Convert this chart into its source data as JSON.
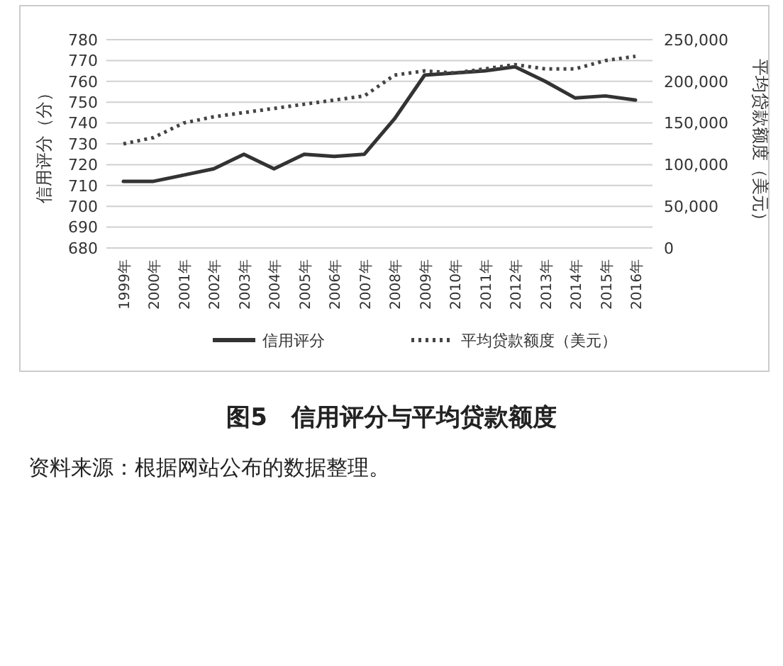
{
  "chart_data": {
    "type": "line",
    "title": "图5　信用评分与平均贷款额度",
    "ylabel": "信用评分（分）",
    "y2label": "平均贷款额度（美元）",
    "categories": [
      "1999年",
      "2000年",
      "2001年",
      "2002年",
      "2003年",
      "2004年",
      "2005年",
      "2006年",
      "2007年",
      "2008年",
      "2009年",
      "2010年",
      "2011年",
      "2012年",
      "2013年",
      "2014年",
      "2015年",
      "2016年"
    ],
    "series": [
      {
        "name": "信用评分",
        "color": "#333333",
        "line_style": "solid",
        "values": [
          712,
          712,
          715,
          718,
          725,
          718,
          725,
          724,
          725,
          742,
          763,
          764,
          765,
          767,
          760,
          752,
          753,
          751
        ]
      },
      {
        "name": "平均贷款额度（美元）",
        "color": "#444444",
        "line_style": "dotted",
        "axis": "y2",
        "values": [
          125000,
          132500,
          150000,
          157500,
          162500,
          167500,
          172500,
          177500,
          182500,
          207500,
          212500,
          210000,
          215000,
          220000,
          215000,
          215000,
          225000,
          230000
        ]
      }
    ],
    "ylim": [
      680,
      780
    ],
    "yticks": [
      680,
      690,
      700,
      710,
      720,
      730,
      740,
      750,
      760,
      770,
      780
    ],
    "y2lim": [
      0,
      250000
    ],
    "y2ticks": [
      {
        "value": 0,
        "label": "0"
      },
      {
        "value": 50000,
        "label": "50,000"
      },
      {
        "value": 100000,
        "label": "100,000"
      },
      {
        "value": 150000,
        "label": "150,000"
      },
      {
        "value": 200000,
        "label": "200,000"
      },
      {
        "value": 250000,
        "label": "250,000"
      }
    ],
    "grid": "y",
    "legend": "bottom",
    "annotations": [
      "资料来源：根据网站公布的数据整理。"
    ]
  }
}
